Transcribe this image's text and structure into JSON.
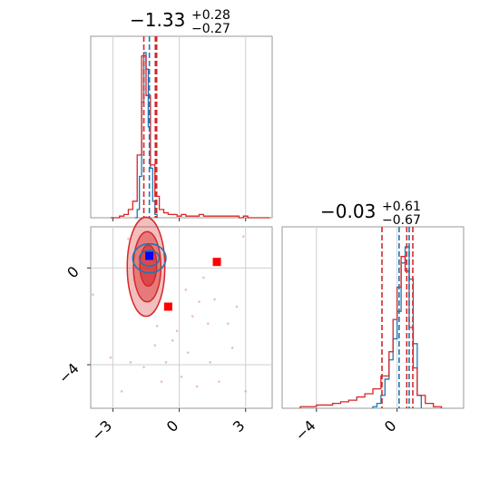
{
  "chart_data": {
    "type": "corner",
    "parameters": [
      "",
      ""
    ],
    "colors": {
      "red": "#d62728",
      "blue": "#1f77b4",
      "marker_red": "#ff0000",
      "marker_blue": "#0000ff",
      "grid": "#cfcfcf"
    },
    "panels": [
      {
        "id": "hist-param-0",
        "type": "histogram",
        "title": {
          "median": "−1.33",
          "plus": "+0.28",
          "minus": "−0.27"
        },
        "xlim": [
          -4.0,
          4.2
        ],
        "grid_x": [
          -3,
          0,
          3
        ],
        "series": [
          {
            "name": "",
            "color": "#1f77b4",
            "bin_edges": [
              -2.0,
              -1.9,
              -1.8,
              -1.7,
              -1.6,
              -1.5,
              -1.4,
              -1.3,
              -1.2,
              -1.1,
              -1.0
            ],
            "counts": [
              0.0,
              0.05,
              0.25,
              0.7,
              1.0,
              0.9,
              0.55,
              0.3,
              0.1,
              0.02
            ]
          },
          {
            "name": "",
            "color": "#d62728",
            "bin_edges": [
              -3.1,
              -2.9,
              -2.7,
              -2.5,
              -2.3,
              -2.1,
              -1.9,
              -1.7,
              -1.5,
              -1.3,
              -1.1,
              -0.9,
              -0.7,
              -0.5,
              -0.3,
              -0.1,
              0.1,
              0.3,
              0.5,
              0.7,
              0.9,
              1.1,
              1.3,
              1.5,
              1.7,
              1.9,
              2.1,
              2.3,
              2.5,
              2.7,
              2.9,
              3.1,
              3.3,
              3.5,
              3.7,
              3.9,
              4.1
            ],
            "counts": [
              0,
              0,
              0.01,
              0.02,
              0.05,
              0.1,
              0.38,
              0.98,
              0.74,
              0.32,
              0.13,
              0.05,
              0.03,
              0.02,
              0.02,
              0.01,
              0.02,
              0.01,
              0.01,
              0.01,
              0.02,
              0.01,
              0.01,
              0.01,
              0.01,
              0.01,
              0.01,
              0.01,
              0.01,
              0,
              0.01,
              0,
              0,
              0,
              0,
              0
            ]
          }
        ],
        "quantile_lines": [
          {
            "x": -1.6,
            "color": "#d62728",
            "style": "dashed"
          },
          {
            "x": -1.35,
            "color": "#1f77b4",
            "style": "dashed"
          },
          {
            "x": -1.08,
            "color": "#d62728",
            "style": "dashed"
          },
          {
            "x": -1.02,
            "color": "#d62728",
            "style": "dashed"
          }
        ]
      },
      {
        "id": "hist-param-1",
        "type": "histogram",
        "title": {
          "median": "−0.03",
          "plus": "+0.61",
          "minus": "−0.67"
        },
        "xlim": [
          -5.7,
          3.3
        ],
        "xticks": [
          -4,
          0
        ],
        "xtick_labels": [
          "−4",
          "0"
        ],
        "series": [
          {
            "name": "",
            "color": "#1f77b4",
            "bin_edges": [
              -1.2,
              -1.0,
              -0.8,
              -0.6,
              -0.4,
              -0.2,
              0.0,
              0.2,
              0.4,
              0.6,
              0.8,
              1.0,
              1.2
            ],
            "counts": [
              0.01,
              0.03,
              0.08,
              0.18,
              0.3,
              0.43,
              0.6,
              0.9,
              1.0,
              0.8,
              0.4,
              0.08
            ]
          },
          {
            "name": "",
            "color": "#d62728",
            "bin_edges": [
              -4.8,
              -4.4,
              -4.0,
              -3.6,
              -3.2,
              -2.8,
              -2.4,
              -2.0,
              -1.6,
              -1.2,
              -0.8,
              -0.4,
              -0.2,
              0.0,
              0.2,
              0.4,
              0.6,
              0.8,
              1.0,
              1.4,
              1.8,
              2.2
            ],
            "counts": [
              0.01,
              0.01,
              0.02,
              0.02,
              0.03,
              0.04,
              0.05,
              0.07,
              0.09,
              0.12,
              0.2,
              0.35,
              0.55,
              0.75,
              0.94,
              0.85,
              0.5,
              0.25,
              0.08,
              0.03,
              0.01
            ]
          }
        ],
        "quantile_lines": [
          {
            "x": -0.75,
            "color": "#d62728",
            "style": "dashed"
          },
          {
            "x": 0.1,
            "color": "#1f77b4",
            "style": "dashed"
          },
          {
            "x": 0.6,
            "color": "#1f77b4",
            "style": "dashed"
          },
          {
            "x": 0.48,
            "color": "#d62728",
            "style": "dashed"
          },
          {
            "x": 0.78,
            "color": "#d62728",
            "style": "dashed"
          }
        ]
      },
      {
        "id": "scatter-2d",
        "type": "contour",
        "xlim": [
          -4.0,
          4.2
        ],
        "ylim": [
          -5.8,
          1.7
        ],
        "xticks": [
          -3,
          0,
          3
        ],
        "xtick_labels": [
          "−3",
          "0",
          "3"
        ],
        "yticks": [
          0,
          -4
        ],
        "ytick_labels": [
          "0",
          "−4"
        ],
        "red_contours": [
          {
            "cx": -1.5,
            "cy": 0.05,
            "rx": 0.85,
            "ry": 2.05,
            "fill_opacity": 0.3
          },
          {
            "cx": -1.45,
            "cy": 0.05,
            "rx": 0.62,
            "ry": 1.45,
            "fill_opacity": 0.45
          },
          {
            "cx": -1.4,
            "cy": 0.1,
            "rx": 0.38,
            "ry": 0.85,
            "fill_opacity": 0.6
          }
        ],
        "blue_contours": [
          {
            "cx": -1.35,
            "cy": 0.4,
            "rx": 0.75,
            "ry": 0.6
          },
          {
            "cx": -1.35,
            "cy": 0.4,
            "rx": 0.45,
            "ry": 0.32
          }
        ],
        "markers": [
          {
            "x": -1.35,
            "y": 0.5,
            "color": "#0000ff"
          },
          {
            "x": 1.7,
            "y": 0.25,
            "color": "#ff0000"
          },
          {
            "x": -0.5,
            "y": -1.6,
            "color": "#ff0000"
          }
        ],
        "scatter_points": [
          [
            -2.3,
            1.2
          ],
          [
            2.9,
            1.3
          ],
          [
            -1.0,
            -2.4
          ],
          [
            0.6,
            -2.0
          ],
          [
            1.3,
            -2.3
          ],
          [
            2.2,
            -2.3
          ],
          [
            -0.3,
            -3.0
          ],
          [
            -1.1,
            -3.2
          ],
          [
            0.4,
            -3.5
          ],
          [
            -2.2,
            -3.9
          ],
          [
            -1.6,
            -4.1
          ],
          [
            -0.8,
            -4.7
          ],
          [
            0.1,
            -4.5
          ],
          [
            1.4,
            -3.9
          ],
          [
            1.8,
            -4.7
          ],
          [
            3.0,
            -5.1
          ],
          [
            -2.6,
            -5.1
          ],
          [
            -3.9,
            -1.1
          ],
          [
            -0.1,
            -2.6
          ],
          [
            0.9,
            -1.4
          ],
          [
            1.6,
            -1.3
          ],
          [
            2.4,
            -3.3
          ],
          [
            -0.6,
            -3.9
          ],
          [
            0.3,
            -0.9
          ],
          [
            1.1,
            -0.4
          ],
          [
            2.6,
            -1.6
          ],
          [
            -3.1,
            -3.7
          ],
          [
            0.8,
            -4.9
          ]
        ]
      }
    ]
  }
}
